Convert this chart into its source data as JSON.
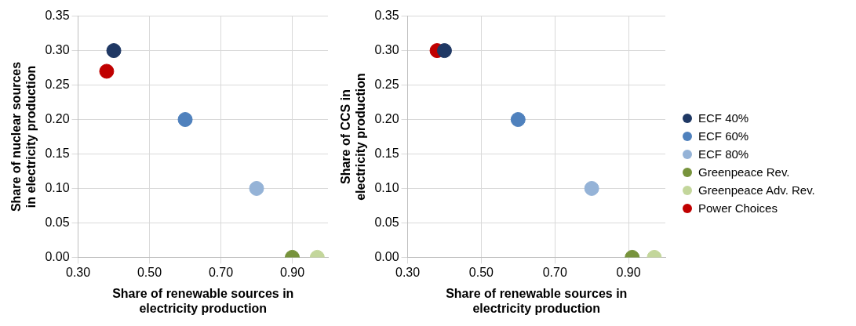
{
  "chart_data": [
    {
      "type": "scatter",
      "xlabel": "Share of renewable sources in electricity production",
      "ylabel": "Share of nuclear sources in electricity production",
      "xlim": [
        0.3,
        1.0
      ],
      "xticks": [
        {
          "value": 0.3,
          "label": "0.30"
        },
        {
          "value": 0.5,
          "label": "0.50"
        },
        {
          "value": 0.7,
          "label": "0.70"
        },
        {
          "value": 0.9,
          "label": "0.90"
        }
      ],
      "ylim": [
        0,
        0.35
      ],
      "yticks": [
        {
          "value": 0,
          "label": "0.00"
        },
        {
          "value": 0.05,
          "label": "0.05"
        },
        {
          "value": 0.1,
          "label": "0.10"
        },
        {
          "value": 0.15,
          "label": "0.15"
        },
        {
          "value": 0.2,
          "label": "0.20"
        },
        {
          "value": 0.25,
          "label": "0.25"
        },
        {
          "value": 0.3,
          "label": "0.30"
        },
        {
          "value": 0.35,
          "label": "0.35"
        }
      ],
      "grid": true,
      "marker": "circle",
      "legend": false,
      "series": [
        {
          "color": "#1f3864",
          "x": [
            0.4
          ],
          "values": [
            0.3
          ]
        },
        {
          "color": "#4f81bd",
          "x": [
            0.6
          ],
          "values": [
            0.2
          ]
        },
        {
          "color": "#95b3d7",
          "x": [
            0.8
          ],
          "values": [
            0.1
          ]
        },
        {
          "color": "#77933c",
          "x": [
            0.9
          ],
          "values": [
            0
          ]
        },
        {
          "color": "#c3d69b",
          "x": [
            0.97
          ],
          "values": [
            0
          ]
        },
        {
          "color": "#c00000",
          "x": [
            0.38
          ],
          "values": [
            0.27
          ]
        }
      ]
    },
    {
      "type": "scatter",
      "xlabel": "Share of renewable sources in electricity production",
      "ylabel": "Share of CCS in electricity production",
      "xlim": [
        0.3,
        1.0
      ],
      "xticks": [
        {
          "value": 0.3,
          "label": "0.30"
        },
        {
          "value": 0.5,
          "label": "0.50"
        },
        {
          "value": 0.7,
          "label": "0.70"
        },
        {
          "value": 0.9,
          "label": "0.90"
        }
      ],
      "ylim": [
        0,
        0.35
      ],
      "yticks": [
        {
          "value": 0,
          "label": "0.00"
        },
        {
          "value": 0.05,
          "label": "0.05"
        },
        {
          "value": 0.1,
          "label": "0.10"
        },
        {
          "value": 0.15,
          "label": "0.15"
        },
        {
          "value": 0.2,
          "label": "0.20"
        },
        {
          "value": 0.25,
          "label": "0.25"
        },
        {
          "value": 0.3,
          "label": "0.30"
        },
        {
          "value": 0.35,
          "label": "0.35"
        }
      ],
      "grid": true,
      "marker": "circle",
      "legend": "right",
      "series": [
        {
          "name": "ECF 40%",
          "color": "#1f3864",
          "x": [
            0.4
          ],
          "values": [
            0.3
          ]
        },
        {
          "name": "ECF 60%",
          "color": "#4f81bd",
          "x": [
            0.6
          ],
          "values": [
            0.2
          ]
        },
        {
          "name": "ECF 80%",
          "color": "#95b3d7",
          "x": [
            0.8
          ],
          "values": [
            0.1
          ]
        },
        {
          "name": "Greenpeace Rev.",
          "color": "#77933c",
          "x": [
            0.91
          ],
          "values": [
            0
          ]
        },
        {
          "name": "Greenpeace Adv. Rev.",
          "color": "#c3d69b",
          "x": [
            0.97
          ],
          "values": [
            0
          ]
        },
        {
          "name": "Power Choices",
          "color": "#c00000",
          "x": [
            0.38
          ],
          "values": [
            0.3
          ]
        }
      ]
    }
  ]
}
